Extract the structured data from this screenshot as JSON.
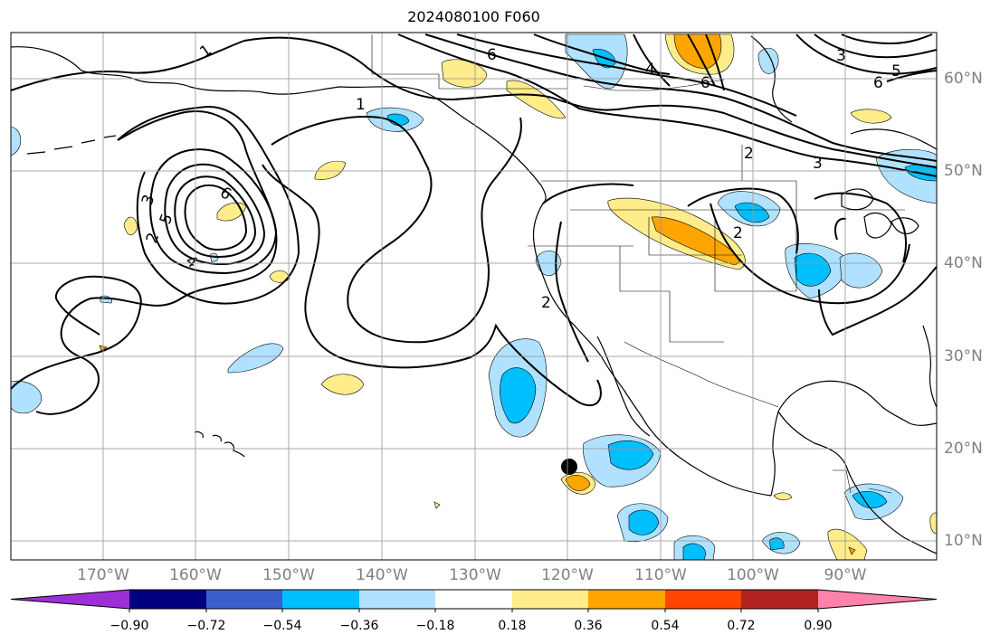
{
  "title": "2024080100 F060",
  "lon_labels": [
    "170°W",
    "160°W",
    "150°W",
    "140°W",
    "130°W",
    "120°W",
    "110°W",
    "100°W",
    "90°W"
  ],
  "lat_labels": [
    "60°N",
    "50°N",
    "40°N",
    "30°N",
    "20°N",
    "10°N"
  ],
  "colorbar": {
    "tick_labels": [
      "−0.90",
      "−0.72",
      "−0.54",
      "−0.36",
      "−0.18",
      "0.18",
      "0.36",
      "0.54",
      "0.72",
      "0.90"
    ],
    "colors": [
      "#9b30d9",
      "#000080",
      "#3a5fcd",
      "#00bfff",
      "#b0e2ff",
      "#ffffff",
      "#ffec8b",
      "#ffa500",
      "#ff4500",
      "#b22222",
      "#ff82ab"
    ]
  },
  "contour_labels": [
    "1",
    "1",
    "2",
    "2",
    "2",
    "2",
    "3",
    "3",
    "3",
    "4",
    "4",
    "5",
    "5",
    "6",
    "6",
    "6",
    "6"
  ],
  "colors": {
    "fill_light_blue": "#b0e2ff",
    "fill_blue": "#00bfff",
    "fill_yellow": "#ffec8b",
    "fill_orange": "#ffa500",
    "grid": "#999999",
    "axis_label": "#808080"
  }
}
